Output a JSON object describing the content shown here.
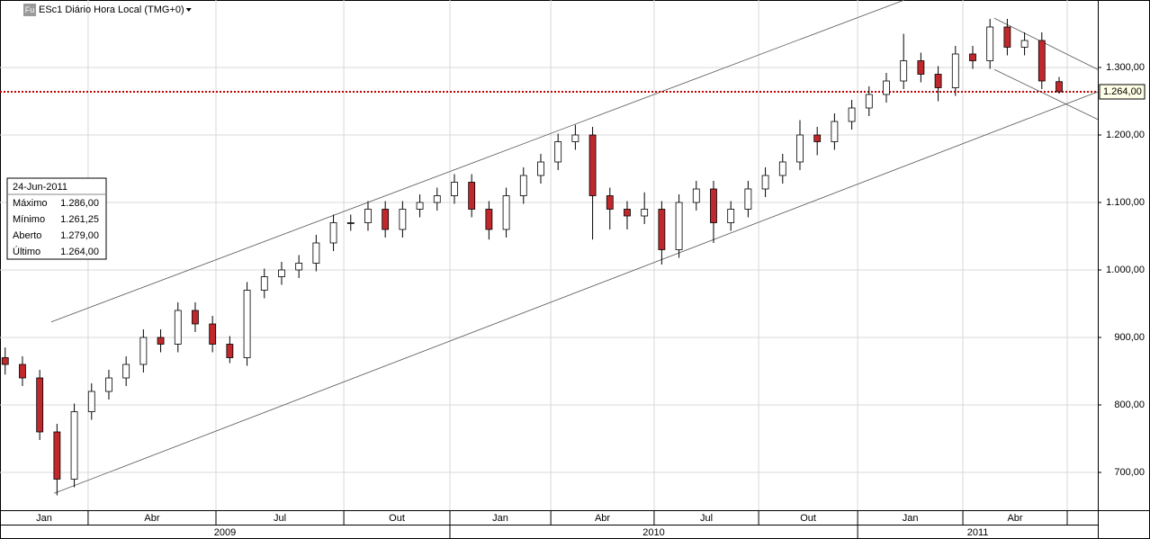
{
  "chart_data": {
    "type": "candlestick",
    "title": "ESc1 Diário Hora Local (TMG+0)",
    "icon_label": "Fu",
    "open": [
      870,
      860,
      840,
      760,
      690,
      790,
      820,
      840,
      860,
      900,
      890,
      940,
      920,
      890,
      870,
      970,
      990,
      1000,
      1010,
      1040,
      1070,
      1070,
      1090,
      1060,
      1090,
      1100,
      1110,
      1130,
      1090,
      1060,
      1110,
      1140,
      1160,
      1190,
      1200,
      1110,
      1090,
      1080,
      1090,
      1030,
      1100,
      1120,
      1070,
      1090,
      1120,
      1140,
      1160,
      1200,
      1190,
      1220,
      1240,
      1260,
      1280,
      1310,
      1290,
      1270,
      1320,
      1310,
      1360,
      1330,
      1340,
      1279
    ],
    "high": [
      885,
      872,
      852,
      772,
      802,
      832,
      852,
      872,
      912,
      912,
      952,
      952,
      932,
      902,
      982,
      1002,
      1012,
      1022,
      1052,
      1082,
      1082,
      1102,
      1102,
      1102,
      1112,
      1122,
      1142,
      1142,
      1102,
      1122,
      1152,
      1172,
      1202,
      1215,
      1212,
      1122,
      1102,
      1115,
      1102,
      1112,
      1132,
      1132,
      1102,
      1132,
      1152,
      1172,
      1222,
      1212,
      1232,
      1252,
      1272,
      1292,
      1350,
      1322,
      1302,
      1332,
      1332,
      1372,
      1372,
      1352,
      1352,
      1286
    ],
    "low": [
      845,
      828,
      748,
      666,
      678,
      778,
      808,
      828,
      848,
      878,
      878,
      908,
      878,
      862,
      858,
      958,
      978,
      988,
      998,
      1028,
      1058,
      1058,
      1048,
      1048,
      1078,
      1088,
      1098,
      1078,
      1045,
      1048,
      1098,
      1128,
      1148,
      1178,
      1045,
      1060,
      1060,
      1068,
      1008,
      1018,
      1088,
      1040,
      1058,
      1078,
      1108,
      1128,
      1148,
      1170,
      1178,
      1208,
      1228,
      1248,
      1268,
      1278,
      1250,
      1258,
      1298,
      1298,
      1318,
      1318,
      1268,
      1261.25
    ],
    "close": [
      860,
      840,
      760,
      690,
      790,
      820,
      840,
      860,
      900,
      890,
      940,
      920,
      890,
      870,
      970,
      990,
      1000,
      1010,
      1040,
      1070,
      1070,
      1090,
      1060,
      1090,
      1100,
      1110,
      1130,
      1090,
      1060,
      1110,
      1140,
      1160,
      1190,
      1200,
      1110,
      1090,
      1080,
      1090,
      1030,
      1100,
      1120,
      1070,
      1090,
      1120,
      1140,
      1160,
      1200,
      1190,
      1220,
      1240,
      1260,
      1280,
      1310,
      1290,
      1270,
      1320,
      1310,
      1360,
      1330,
      1340,
      1280,
      1264
    ],
    "up_color": "#ffffff",
    "down_color": "#c0282c",
    "ylim": [
      644,
      1400
    ],
    "yticks": [
      {
        "value": 700,
        "label": "700,00"
      },
      {
        "value": 800,
        "label": "800,00"
      },
      {
        "value": 900,
        "label": "900,00"
      },
      {
        "value": 1000,
        "label": "1.000,00"
      },
      {
        "value": 1100,
        "label": "1.100,00"
      },
      {
        "value": 1200,
        "label": "1.200,00"
      },
      {
        "value": 1300,
        "label": "1.300,00"
      }
    ],
    "xlim": [
      -0.3,
      63.24
    ],
    "xticks": [
      {
        "value": 4.8,
        "label": "Jan"
      },
      {
        "value": 12.2,
        "label": "Abr"
      },
      {
        "value": 19.6,
        "label": "Jul"
      },
      {
        "value": 25.74,
        "label": "Out"
      },
      {
        "value": 31.58,
        "label": "Jan"
      },
      {
        "value": 37.56,
        "label": "Abr"
      },
      {
        "value": 43.61,
        "label": "Jul"
      },
      {
        "value": 49.34,
        "label": "Out"
      },
      {
        "value": 55.43,
        "label": "Jan"
      },
      {
        "value": 61.47,
        "label": "Abr"
      }
    ],
    "years": [
      "2009",
      "2010",
      "2011"
    ],
    "year_breaks": [
      25.74,
      49.34
    ],
    "grid": true,
    "last_price": {
      "value": 1264,
      "label": "1.264,00",
      "color": "#c00000"
    },
    "trendlines": [
      {
        "x": [
          2.67,
          52.04
        ],
        "y": [
          923,
          1400
        ]
      },
      {
        "x": [
          2.83,
          63.24
        ],
        "y": [
          669,
          1264
        ]
      },
      {
        "x": [
          57.25,
          63.24
        ],
        "y": [
          1373,
          1297
        ]
      },
      {
        "x": [
          57.25,
          63.24
        ],
        "y": [
          1297,
          1223
        ]
      }
    ],
    "info_box": {
      "date": "24-Jun-2011",
      "rows": [
        [
          "Máximo",
          "1.286,00"
        ],
        [
          "Mínimo",
          "1.261,25"
        ],
        [
          "Aberto",
          "1.279,00"
        ],
        [
          "Último",
          "1.264,00"
        ]
      ]
    }
  }
}
